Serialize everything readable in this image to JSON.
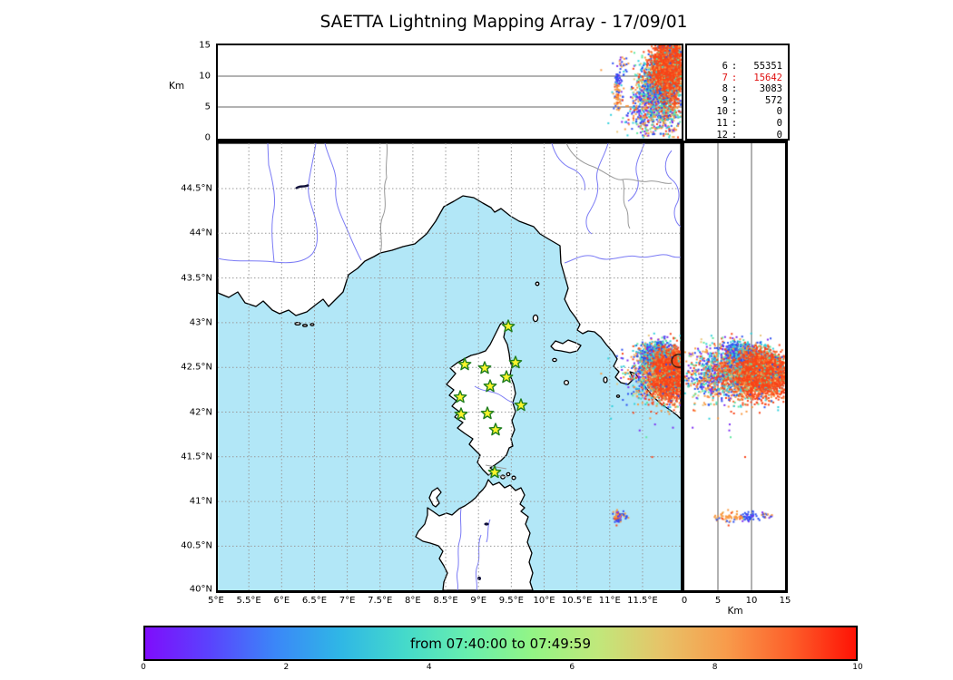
{
  "title": "SAETTA Lightning Mapping Array - 17/09/01",
  "top_panel": {
    "ylabel": "Km",
    "yticks": [
      {
        "label": "15",
        "km": 15
      },
      {
        "label": "10",
        "km": 10
      },
      {
        "label": "5",
        "km": 5
      },
      {
        "label": "0",
        "km": 0
      }
    ]
  },
  "legend": {
    "rows": [
      {
        "level": "6",
        "count": "55351",
        "highlight": false
      },
      {
        "level": "7",
        "count": "15642",
        "highlight": true
      },
      {
        "level": "8",
        "count": "3083",
        "highlight": false
      },
      {
        "level": "9",
        "count": "572",
        "highlight": false
      },
      {
        "level": "10",
        "count": "0",
        "highlight": false
      },
      {
        "level": "11",
        "count": "0",
        "highlight": false
      },
      {
        "level": "12",
        "count": "0",
        "highlight": false
      }
    ]
  },
  "map": {
    "lat_ticks": [
      {
        "label": "44.5°N",
        "lat": 44.5
      },
      {
        "label": "44°N",
        "lat": 44.0
      },
      {
        "label": "43.5°N",
        "lat": 43.5
      },
      {
        "label": "43°N",
        "lat": 43.0
      },
      {
        "label": "42.5°N",
        "lat": 42.5
      },
      {
        "label": "42°N",
        "lat": 42.0
      },
      {
        "label": "41.5°N",
        "lat": 41.5
      },
      {
        "label": "41°N",
        "lat": 41.0
      },
      {
        "label": "40.5°N",
        "lat": 40.5
      },
      {
        "label": "40°N",
        "lat": 40.0
      }
    ],
    "lon_ticks": [
      {
        "label": "5°E",
        "lon": 5.0
      },
      {
        "label": "5.5°E",
        "lon": 5.5
      },
      {
        "label": "6°E",
        "lon": 6.0
      },
      {
        "label": "6.5°E",
        "lon": 6.5
      },
      {
        "label": "7°E",
        "lon": 7.0
      },
      {
        "label": "7.5°E",
        "lon": 7.5
      },
      {
        "label": "8°E",
        "lon": 8.0
      },
      {
        "label": "8.5°E",
        "lon": 8.5
      },
      {
        "label": "9°E",
        "lon": 9.0
      },
      {
        "label": "9.5°E",
        "lon": 9.5
      },
      {
        "label": "10°E",
        "lon": 10.0
      },
      {
        "label": "10.5°E",
        "lon": 10.5
      },
      {
        "label": "11°E",
        "lon": 11.0
      },
      {
        "label": "11.5°E",
        "lon": 11.5
      }
    ],
    "sea_color": "#b2e7f7",
    "land_color": "#ffffff"
  },
  "right_panel": {
    "xlabel": "Km",
    "xticks": [
      {
        "label": "0",
        "km": 0
      },
      {
        "label": "5",
        "km": 5
      },
      {
        "label": "10",
        "km": 10
      },
      {
        "label": "15",
        "km": 15
      }
    ]
  },
  "colorbar": {
    "label": "from 07:40:00 to 07:49:59",
    "ticks": [
      {
        "label": "0",
        "v": 0
      },
      {
        "label": "2",
        "v": 2
      },
      {
        "label": "4",
        "v": 4
      },
      {
        "label": "6",
        "v": 6
      },
      {
        "label": "8",
        "v": 8
      },
      {
        "label": "10",
        "v": 10
      }
    ],
    "gradient": [
      "#7f0dfc",
      "#5a43fd",
      "#3b86f8",
      "#2fb6e6",
      "#44d9cb",
      "#68efae",
      "#93f585",
      "#c0e87b",
      "#e7c368",
      "#f89b4b",
      "#fd5f2a",
      "#fe1205"
    ]
  },
  "chart_data": {
    "type": "scatter",
    "title": "SAETTA Lightning Mapping Array - 17/09/01",
    "description": "VHF lightning source locations: map view (lon/lat), altitude-longitude top panel, altitude-latitude right panel; points colored by time within window",
    "time_window": {
      "from": "07:40:00",
      "to": "07:49:59"
    },
    "axes": {
      "map_lon_range_deg_e": [
        5.0,
        12.09
      ],
      "map_lat_range_deg_n": [
        40.0,
        45.0
      ],
      "altitude_range_km": [
        0,
        15
      ]
    },
    "station_threshold_counts": {
      "6": 55351,
      "7": 15642,
      "8": 3083,
      "9": 572,
      "10": 0,
      "11": 0,
      "12": 0
    },
    "stations": [
      {
        "lon": 9.454,
        "lat": 42.958
      },
      {
        "lon": 8.79,
        "lat": 42.532
      },
      {
        "lon": 9.094,
        "lat": 42.492
      },
      {
        "lon": 9.564,
        "lat": 42.553
      },
      {
        "lon": 9.426,
        "lat": 42.39
      },
      {
        "lon": 9.177,
        "lat": 42.289
      },
      {
        "lon": 8.721,
        "lat": 42.167
      },
      {
        "lon": 9.647,
        "lat": 42.076
      },
      {
        "lon": 8.735,
        "lat": 41.975
      },
      {
        "lon": 9.136,
        "lat": 41.985
      },
      {
        "lon": 9.26,
        "lat": 41.802
      },
      {
        "lon": 9.246,
        "lat": 41.326
      }
    ],
    "clusters": [
      {
        "name": "storm-west-low-fringe",
        "count": 300,
        "lon": {
          "m": 11.58,
          "s": 0.17,
          "lo": 11.15,
          "hi": 12.0
        },
        "lat": {
          "m": 42.42,
          "s": 0.14,
          "lo": 42.05,
          "hi": 42.8
        },
        "alt": {
          "m": 4.0,
          "s": 2.2,
          "lo": 0.3,
          "hi": 10.0
        },
        "colors": [
          [
            "#7d2df2",
            22
          ],
          [
            "#2b4ff0",
            30
          ],
          [
            "#2fd0dc",
            16
          ],
          [
            "#f99a43",
            16
          ],
          [
            "#f94418",
            10
          ],
          [
            "#5fe89f",
            6
          ]
        ]
      },
      {
        "name": "storm-mid-fringe",
        "count": 1000,
        "lon": {
          "m": 11.82,
          "s": 0.19,
          "lo": 11.2,
          "hi": 12.09
        },
        "lat": {
          "m": 42.42,
          "s": 0.17,
          "lo": 41.95,
          "hi": 42.9
        },
        "alt": {
          "m": 7.5,
          "s": 3.2,
          "lo": 0.0,
          "hi": 15.0
        },
        "colors": [
          [
            "#f99a43",
            22
          ],
          [
            "#f94418",
            20
          ],
          [
            "#2fd0dc",
            16
          ],
          [
            "#5fe89f",
            16
          ],
          [
            "#2b4ff0",
            12
          ],
          [
            "#7d2df2",
            6
          ],
          [
            "#eac77c",
            8
          ]
        ]
      },
      {
        "name": "storm-north-anvil",
        "count": 520,
        "lon": {
          "m": 11.72,
          "s": 0.14,
          "lo": 11.35,
          "hi": 12.09
        },
        "lat": {
          "m": 42.65,
          "s": 0.07,
          "lo": 42.48,
          "hi": 42.88
        },
        "alt": {
          "m": 8.8,
          "s": 1.8,
          "lo": 4.0,
          "hi": 13.5
        },
        "colors": [
          [
            "#2b4ff0",
            36
          ],
          [
            "#2fd0dc",
            30
          ],
          [
            "#7d2df2",
            12
          ],
          [
            "#5fe89f",
            10
          ],
          [
            "#f99a43",
            7
          ],
          [
            "#f94418",
            5
          ]
        ]
      },
      {
        "name": "storm-core",
        "count": 2700,
        "lon": {
          "m": 11.9,
          "s": 0.12,
          "lo": 11.45,
          "hi": 12.09
        },
        "lat": {
          "m": 42.43,
          "s": 0.12,
          "lo": 42.05,
          "hi": 42.75
        },
        "alt": {
          "m": 11.5,
          "s": 2.2,
          "lo": 2.5,
          "hi": 15.0
        },
        "colors": [
          [
            "#f94418",
            62
          ],
          [
            "#fa6b2c",
            14
          ],
          [
            "#f99a43",
            8
          ],
          [
            "#5fe89f",
            6
          ],
          [
            "#2fd0dc",
            4
          ],
          [
            "#2b4ff0",
            3
          ],
          [
            "#eac77c",
            3
          ]
        ]
      },
      {
        "name": "sardinia-cell-blue-top",
        "count": 34,
        "lon": {
          "m": 11.12,
          "s": 0.02,
          "lo": 11.05,
          "hi": 11.2
        },
        "lat": {
          "m": 40.82,
          "s": 0.03,
          "lo": 40.72,
          "hi": 40.92
        },
        "alt": {
          "m": 9.4,
          "s": 0.6,
          "lo": 8.2,
          "hi": 10.5
        },
        "colors": [
          [
            "#2b4ff0",
            70
          ],
          [
            "#7d2df2",
            20
          ],
          [
            "#2fd0dc",
            10
          ]
        ]
      },
      {
        "name": "sardinia-cell-orange",
        "count": 60,
        "lon": {
          "m": 11.12,
          "s": 0.025,
          "lo": 11.04,
          "hi": 11.22
        },
        "lat": {
          "m": 40.83,
          "s": 0.028,
          "lo": 40.72,
          "hi": 40.95
        },
        "alt": {
          "m": 6.6,
          "s": 1.2,
          "lo": 4.0,
          "hi": 8.8
        },
        "colors": [
          [
            "#f99a43",
            72
          ],
          [
            "#f94418",
            10
          ],
          [
            "#2b4ff0",
            12
          ],
          [
            "#eac77c",
            6
          ]
        ]
      },
      {
        "name": "sardinia-cell-high-streak",
        "count": 26,
        "lon": {
          "m": 11.16,
          "s": 0.05,
          "lo": 11.0,
          "hi": 11.3
        },
        "lat": {
          "m": 40.84,
          "s": 0.02,
          "lo": 40.76,
          "hi": 40.9
        },
        "alt": {
          "m": 11.6,
          "s": 1.0,
          "lo": 9.8,
          "hi": 13.6
        },
        "colors": [
          [
            "#2b4ff0",
            55
          ],
          [
            "#f99a43",
            30
          ],
          [
            "#7d2df2",
            15
          ]
        ]
      },
      {
        "name": "sparse-isolated",
        "count": 30,
        "lon": {
          "m": 11.35,
          "s": 0.33,
          "lo": 10.7,
          "hi": 12.05
        },
        "lat": {
          "m": 42.35,
          "s": 0.4,
          "lo": 41.3,
          "hi": 43.1
        },
        "alt": {
          "m": 7.0,
          "s": 4.0,
          "lo": 0.2,
          "hi": 14.5
        },
        "colors": [
          [
            "#2fd0dc",
            18
          ],
          [
            "#f99a43",
            18
          ],
          [
            "#2b4ff0",
            15
          ],
          [
            "#f94418",
            15
          ],
          [
            "#5fe89f",
            12
          ],
          [
            "#7d2df2",
            12
          ],
          [
            "#eac77c",
            10
          ]
        ]
      }
    ],
    "station_marker": {
      "shape": "star",
      "fill": "#fbf42a",
      "stroke": "#1e7d1e"
    }
  }
}
